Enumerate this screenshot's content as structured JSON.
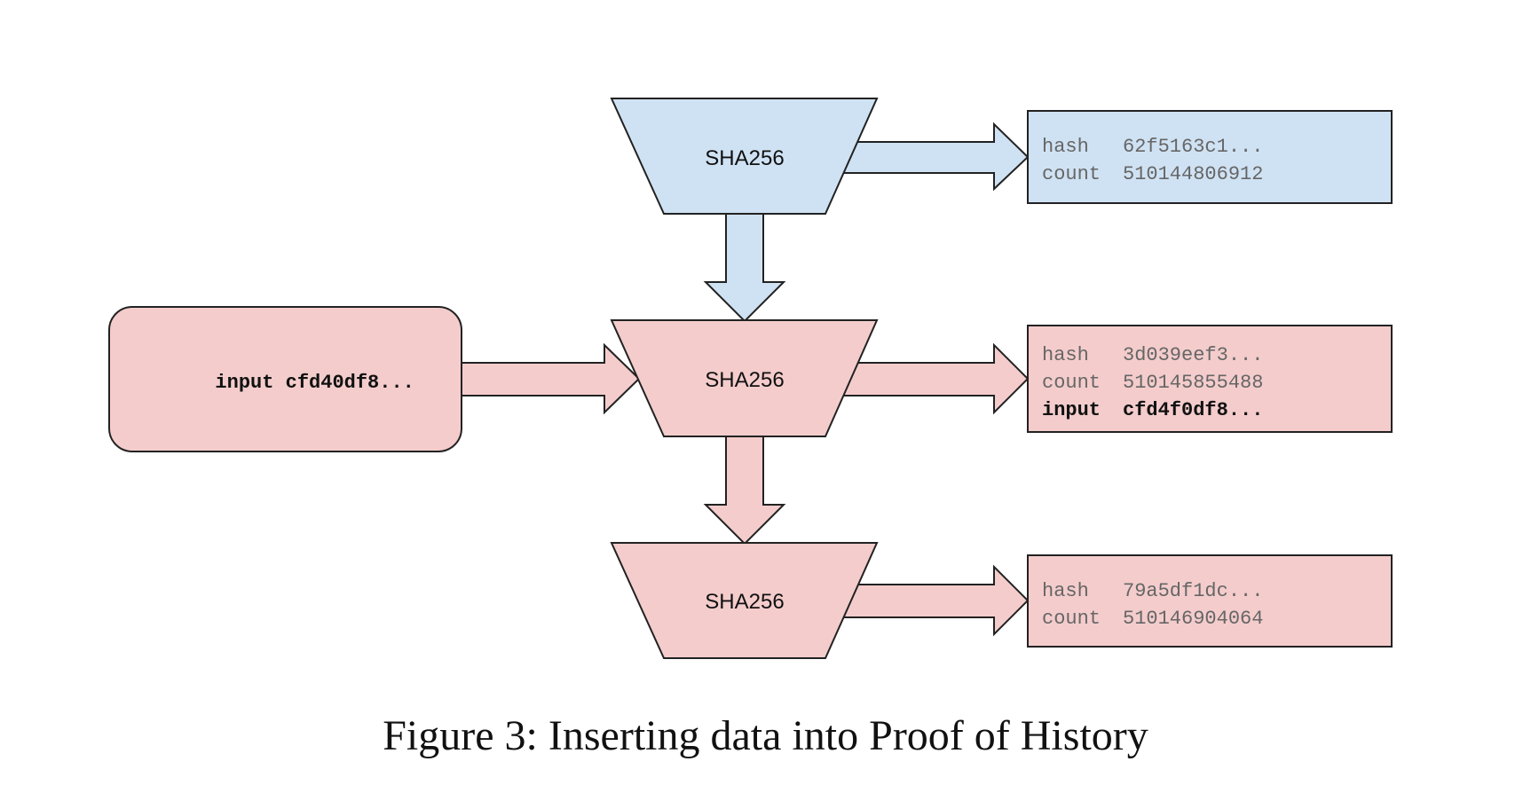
{
  "colors": {
    "blue_fill": "#cfe2f3",
    "red_fill": "#f4cccc",
    "stroke": "#222222"
  },
  "icons": {
    "arrow": "block-arrow-icon"
  },
  "diagram": {
    "hash_blocks": [
      {
        "label": "SHA256",
        "color": "blue"
      },
      {
        "label": "SHA256",
        "color": "red"
      },
      {
        "label": "SHA256",
        "color": "red"
      }
    ],
    "input_box": {
      "keyword": "input",
      "value": "cfd40df8..."
    },
    "outputs": [
      {
        "color": "blue",
        "hash_key": "hash",
        "hash_value": "62f5163c1...",
        "count_key": "count",
        "count_value": "510144806912"
      },
      {
        "color": "red",
        "hash_key": "hash",
        "hash_value": "3d039eef3...",
        "count_key": "count",
        "count_value": "510145855488",
        "input_key": "input",
        "input_value": "cfd4f0df8..."
      },
      {
        "color": "red",
        "hash_key": "hash",
        "hash_value": "79a5df1dc...",
        "count_key": "count",
        "count_value": "510146904064"
      }
    ]
  },
  "caption": "Figure 3: Inserting data into Proof of History"
}
